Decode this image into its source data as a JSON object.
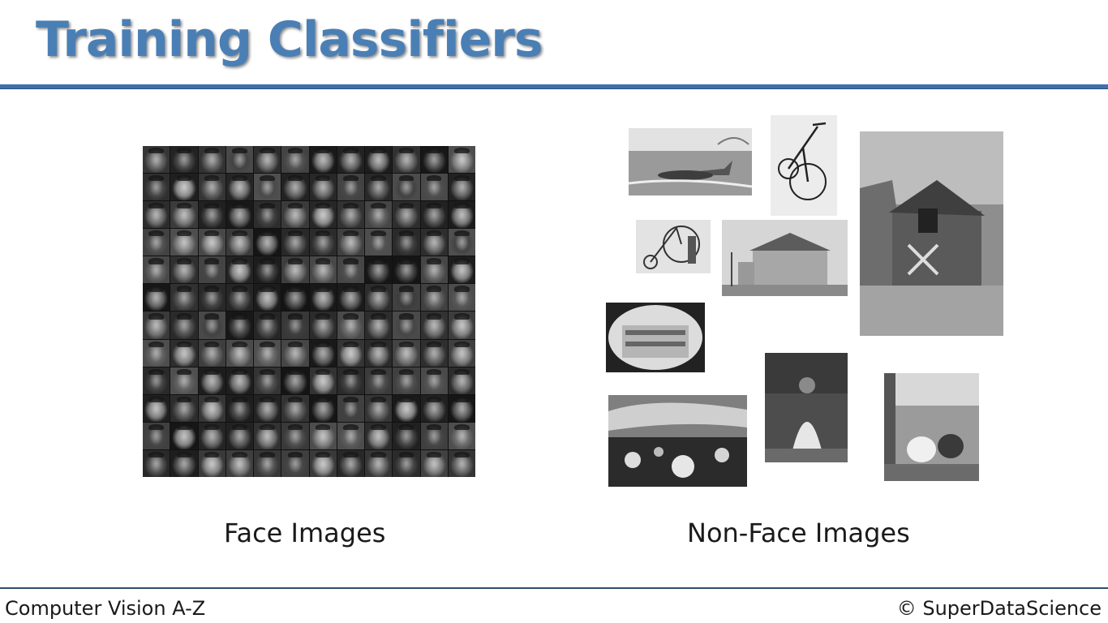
{
  "slide": {
    "title": "Training Classifiers",
    "face_label": "Face Images",
    "nonface_label": "Non-Face Images"
  },
  "footer": {
    "course": "Computer Vision A-Z",
    "copyright": "© SuperDataScience"
  },
  "colors": {
    "title": "#4a7fb5",
    "rule": "#3f72ad"
  }
}
